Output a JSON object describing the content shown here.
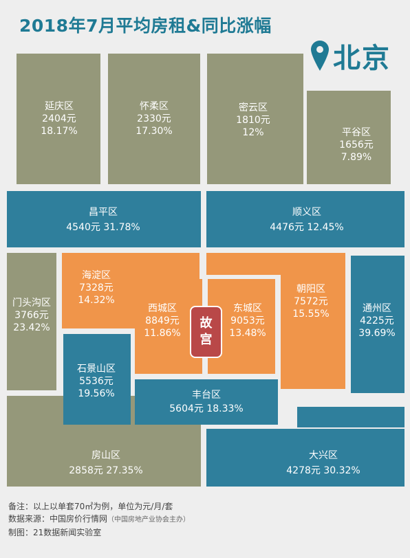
{
  "title": "2018年7月平均房租&同比涨幅",
  "city": "北京",
  "pin_icon": "location-pin-icon",
  "palace": [
    "故",
    "宫"
  ],
  "colors": {
    "title": "#1f7a94",
    "olive": "#95987a",
    "blue": "#2f7f9c",
    "orange": "#f0954a",
    "palace": "#b94848"
  },
  "districts": [
    {
      "name": "延庆区",
      "rent": "2404元",
      "growth": "18.17%"
    },
    {
      "name": "怀柔区",
      "rent": "2330元",
      "growth": "17.30%"
    },
    {
      "name": "密云区",
      "rent": "1810元",
      "growth": "12%"
    },
    {
      "name": "平谷区",
      "rent": "1656元",
      "growth": "7.89%"
    },
    {
      "name": "昌平区",
      "rent": "4540元",
      "growth": "31.78%"
    },
    {
      "name": "顺义区",
      "rent": "4476元",
      "growth": "12.45%"
    },
    {
      "name": "门头沟区",
      "rent": "3766元",
      "growth": "23.42%"
    },
    {
      "name": "海淀区",
      "rent": "7328元",
      "growth": "14.32%"
    },
    {
      "name": "西城区",
      "rent": "8849元",
      "growth": "11.86%"
    },
    {
      "name": "东城区",
      "rent": "9053元",
      "growth": "13.48%"
    },
    {
      "name": "朝阳区",
      "rent": "7572元",
      "growth": "15.55%"
    },
    {
      "name": "通州区",
      "rent": "4225元",
      "growth": "39.69%"
    },
    {
      "name": "石景山区",
      "rent": "5536元",
      "growth": "19.56%"
    },
    {
      "name": "丰台区",
      "rent": "5604元",
      "growth": "18.33%"
    },
    {
      "name": "房山区",
      "rent": "2858元",
      "growth": "27.35%"
    },
    {
      "name": "大兴区",
      "rent": "4278元",
      "growth": "30.32%"
    }
  ],
  "notes": {
    "line1": "备注：以上以单套70㎡为例，单位为元/月/套",
    "line2": "数据来源：中国房价行情网",
    "line2_sub": "（中国房地产业协会主办）",
    "line3": "制图：21数据新闻实验室"
  }
}
